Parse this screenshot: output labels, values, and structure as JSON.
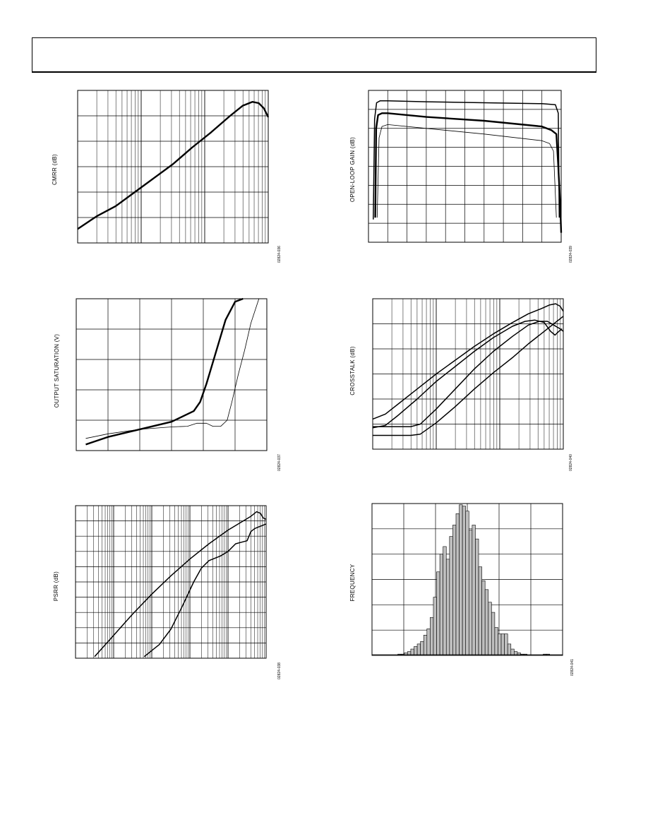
{
  "page": {
    "header": ""
  },
  "chart_data": [
    {
      "id": "cmrr",
      "type": "line",
      "ylabel": "CMRR (dB)",
      "figure_code": "02824-036",
      "x_scale": "log",
      "x_decades": 3,
      "y_divisions": 6,
      "xlim": [
        0,
        3
      ],
      "ylim": [
        0,
        6
      ],
      "grid": true,
      "series": [
        {
          "style": "thick",
          "x": [
            0,
            0.3,
            0.6,
            0.9,
            1.2,
            1.5,
            1.8,
            2.1,
            2.4,
            2.6,
            2.75,
            2.85,
            2.93,
            3.0
          ],
          "y": [
            0.55,
            1.05,
            1.45,
            2.0,
            2.55,
            3.1,
            3.75,
            4.35,
            5.0,
            5.4,
            5.55,
            5.5,
            5.3,
            4.95
          ]
        }
      ]
    },
    {
      "id": "open-loop-gain",
      "type": "line",
      "ylabel": "OPEN-LOOP GAIN (dB)",
      "figure_code": "02824-039",
      "x_scale": "linear",
      "x_divisions": 10,
      "y_divisions": 8,
      "xlim": [
        0,
        10
      ],
      "ylim": [
        0,
        8
      ],
      "grid": true,
      "series": [
        {
          "style": "medium",
          "x": [
            0.25,
            0.32,
            0.42,
            0.6,
            1,
            3,
            6,
            9,
            9.7,
            9.85,
            9.9
          ],
          "y": [
            1.2,
            6.5,
            7.35,
            7.45,
            7.45,
            7.4,
            7.35,
            7.3,
            7.25,
            6.8,
            1.3
          ]
        },
        {
          "style": "thick",
          "x": [
            0.35,
            0.4,
            0.5,
            0.7,
            1,
            3,
            6,
            9,
            9.5,
            9.75,
            9.85,
            9.95,
            10.0
          ],
          "y": [
            1.3,
            6.0,
            6.7,
            6.8,
            6.8,
            6.6,
            6.4,
            6.1,
            5.9,
            5.7,
            4.0,
            2.0,
            0.5
          ]
        },
        {
          "style": "thin",
          "x": [
            0.45,
            0.55,
            0.7,
            1,
            3,
            6,
            9,
            9.4,
            9.6,
            9.75
          ],
          "y": [
            1.3,
            5.5,
            6.1,
            6.2,
            6.0,
            5.7,
            5.35,
            5.2,
            4.8,
            1.3
          ]
        }
      ],
      "annotations": [
        "",
        "",
        ""
      ]
    },
    {
      "id": "output-saturation",
      "type": "line",
      "ylabel": "OUTPUT SATURATION (V)",
      "figure_code": "02824-037",
      "x_scale": "linear",
      "x_divisions": 6,
      "y_divisions": 5,
      "xlim": [
        0,
        6
      ],
      "ylim": [
        0,
        5
      ],
      "grid": true,
      "series": [
        {
          "style": "thick",
          "x": [
            0.3,
            1,
            2,
            3,
            3.7,
            3.9,
            4.1,
            4.3,
            4.5,
            4.7,
            5.0,
            5.25
          ],
          "y": [
            0.2,
            0.45,
            0.7,
            0.95,
            1.3,
            1.6,
            2.2,
            2.9,
            3.6,
            4.3,
            4.9,
            5.0
          ]
        },
        {
          "style": "thin",
          "x": [
            0.3,
            1,
            2,
            3,
            3.5,
            3.8,
            4.1,
            4.3,
            4.55,
            4.75,
            4.9,
            5.1,
            5.3,
            5.5,
            5.75
          ],
          "y": [
            0.4,
            0.55,
            0.7,
            0.78,
            0.8,
            0.9,
            0.9,
            0.8,
            0.8,
            1.0,
            1.6,
            2.5,
            3.3,
            4.2,
            5.0
          ]
        }
      ],
      "annotations": [
        "",
        ""
      ]
    },
    {
      "id": "crosstalk",
      "type": "line",
      "ylabel": "CROSSTALK (dB)",
      "figure_code": "02824-040",
      "x_scale": "log",
      "x_decades": 3,
      "y_divisions": 6,
      "xlim": [
        0,
        3
      ],
      "ylim": [
        0,
        6
      ],
      "grid": true,
      "series": [
        {
          "style": "medium",
          "x": [
            0,
            0.2,
            0.4,
            0.7,
            1.0,
            1.3,
            1.6,
            1.9,
            2.2,
            2.45,
            2.65,
            2.78,
            2.88,
            2.95,
            3.0
          ],
          "y": [
            1.2,
            1.4,
            1.8,
            2.4,
            3.0,
            3.55,
            4.1,
            4.6,
            5.05,
            5.4,
            5.6,
            5.75,
            5.8,
            5.7,
            5.5
          ]
        },
        {
          "style": "medium",
          "x": [
            0,
            0.2,
            0.4,
            0.7,
            1.0,
            1.3,
            1.6,
            1.9,
            2.2,
            2.4,
            2.55,
            2.7,
            2.8,
            2.87,
            2.93,
            2.98
          ],
          "y": [
            0.85,
            0.95,
            1.35,
            2.0,
            2.7,
            3.3,
            3.9,
            4.45,
            4.9,
            5.1,
            5.15,
            5.05,
            4.7,
            4.55,
            4.7,
            4.8
          ]
        },
        {
          "style": "medium",
          "x": [
            0,
            0.3,
            0.6,
            0.75,
            1.0,
            1.3,
            1.6,
            1.9,
            2.2,
            2.45,
            2.62,
            2.75,
            2.85,
            2.95,
            3.0
          ],
          "y": [
            0.9,
            0.9,
            0.9,
            1.0,
            1.6,
            2.4,
            3.2,
            3.9,
            4.5,
            4.95,
            5.1,
            5.1,
            4.95,
            4.8,
            4.7
          ]
        },
        {
          "style": "medium",
          "x": [
            0,
            0.3,
            0.6,
            0.75,
            1.0,
            1.3,
            1.6,
            1.9,
            2.2,
            2.45,
            2.7,
            2.85,
            3.0
          ],
          "y": [
            0.55,
            0.55,
            0.55,
            0.6,
            1.05,
            1.7,
            2.4,
            3.05,
            3.65,
            4.2,
            4.7,
            5.0,
            5.3
          ]
        }
      ],
      "annotations": [
        "",
        "",
        "",
        ""
      ]
    },
    {
      "id": "psrr",
      "type": "line",
      "ylabel": "PSRR (dB)",
      "figure_code": "02824-038",
      "x_scale": "log",
      "x_decades": 5,
      "y_divisions": 10,
      "xlim": [
        0,
        5
      ],
      "ylim": [
        0,
        10
      ],
      "grid": true,
      "series": [
        {
          "style": "medium",
          "x": [
            0.5,
            1.0,
            1.5,
            2.0,
            2.5,
            3.0,
            3.5,
            4.0,
            4.4,
            4.6,
            4.75,
            4.85,
            4.92,
            5.0
          ],
          "y": [
            0.1,
            1.5,
            2.9,
            4.2,
            5.4,
            6.5,
            7.5,
            8.4,
            9.0,
            9.3,
            9.6,
            9.5,
            9.2,
            9.1
          ]
        },
        {
          "style": "medium",
          "x": [
            1.8,
            2.2,
            2.5,
            2.8,
            3.1,
            3.3,
            3.5,
            3.8,
            4.0,
            4.2,
            4.35,
            4.5,
            4.6,
            4.7,
            4.8,
            4.9,
            5.0
          ],
          "y": [
            0.1,
            0.9,
            1.9,
            3.4,
            5.0,
            5.9,
            6.4,
            6.7,
            7.0,
            7.5,
            7.6,
            7.7,
            8.3,
            8.5,
            8.6,
            8.7,
            8.8
          ]
        }
      ],
      "annotations": [
        "",
        ""
      ]
    },
    {
      "id": "frequency-histogram",
      "type": "bar",
      "ylabel": "FREQUENCY",
      "figure_code": "02824-041",
      "x_divisions": 6,
      "y_divisions": 6,
      "ylim": [
        0,
        6
      ],
      "grid": true,
      "bar_color": "#bfbfbf",
      "values": [
        0,
        0,
        0,
        0,
        0,
        0,
        0,
        0,
        0.05,
        0.05,
        0.1,
        0.15,
        0.25,
        0.35,
        0.45,
        0.55,
        0.8,
        1.05,
        1.5,
        2.3,
        3.3,
        4.0,
        4.3,
        3.8,
        4.7,
        5.15,
        5.6,
        5.95,
        5.9,
        5.7,
        4.95,
        5.15,
        4.6,
        3.5,
        2.95,
        2.6,
        2.1,
        1.7,
        1.1,
        0.85,
        0.85,
        0.85,
        0.45,
        0.25,
        0.15,
        0.1,
        0.05,
        0.05,
        0,
        0,
        0,
        0,
        0,
        0.05,
        0.05,
        0,
        0,
        0,
        0
      ]
    }
  ]
}
